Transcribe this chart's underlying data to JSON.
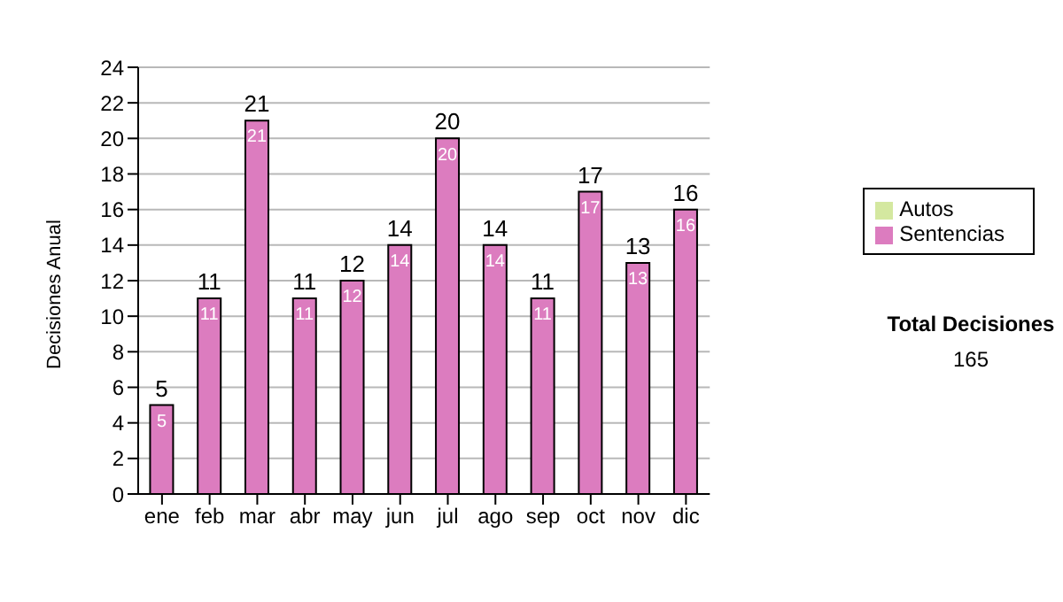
{
  "chart_data": {
    "type": "bar",
    "ylabel": "Decisiones Anual",
    "categories": [
      "ene",
      "feb",
      "mar",
      "abr",
      "may",
      "jun",
      "jul",
      "ago",
      "sep",
      "oct",
      "nov",
      "dic"
    ],
    "series": [
      {
        "name": "Sentencias",
        "color": "#dc7cbf",
        "values": [
          5,
          11,
          21,
          11,
          12,
          14,
          20,
          14,
          11,
          17,
          13,
          16
        ]
      },
      {
        "name": "Autos",
        "color": "#d4e8a0",
        "values": [
          null,
          null,
          null,
          null,
          null,
          null,
          null,
          null,
          null,
          null,
          null,
          null
        ]
      }
    ],
    "stacked": true,
    "data_labels": true,
    "totals": [
      "5",
      "11",
      "21",
      "11",
      "12",
      "14",
      "20",
      "14",
      "11",
      "17",
      "13",
      "16"
    ],
    "ylim": [
      0,
      24
    ],
    "yticks": [
      0,
      2,
      4,
      6,
      8,
      10,
      12,
      14,
      16,
      18,
      20,
      22,
      24
    ],
    "grid": "y",
    "legend": "right",
    "annotations": [
      "Total Decisiones",
      "165"
    ]
  }
}
